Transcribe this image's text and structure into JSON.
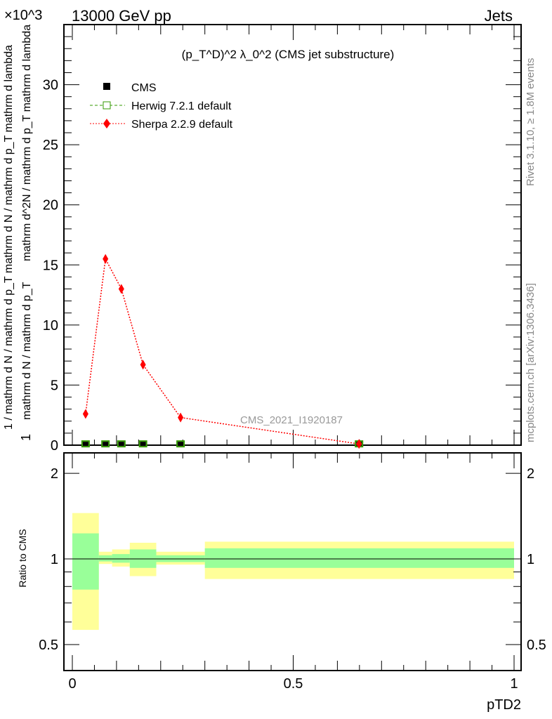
{
  "chart_data": {
    "type": "line",
    "title": "(p_T^D)^2 λ_0^2 (CMS jet substructure)",
    "header_left": "13000 GeV pp",
    "header_right": "Jets",
    "y_multiplier": "×10^3",
    "xlabel": "pTD2",
    "ylabel": "1 / mathrm d N / mathrm d p_T mathrm d N / mathrm d p_T mathrm d lambda",
    "ylabel_top": "1",
    "ylabel_bottom": "mathrm d N / mathrm d p_T",
    "ylabel_frac": "mathrm d^2N / mathrm d p_T mathrm d lambda",
    "ratio_ylabel": "Ratio to CMS",
    "side_text_1": "Rivet 3.1.10, ≥ 1.8M events",
    "side_text_2": "mcplots.cern.ch [arXiv:1306.3436]",
    "watermark": "CMS_2021_I1920187",
    "xlim": [
      0,
      1
    ],
    "ylim": [
      0,
      35
    ],
    "ratio_ylim": [
      0.405,
      2.36
    ],
    "ratio_log": true,
    "x_ticks": [
      "0",
      "0.5",
      "1"
    ],
    "y_ticks": [
      "0",
      "5",
      "10",
      "15",
      "20",
      "25",
      "30"
    ],
    "ratio_ticks": [
      "0.5",
      "1",
      "2"
    ],
    "legend": [
      "CMS",
      "Herwig 7.2.1 default",
      "Sherpa 2.2.9 default"
    ],
    "x": [
      0.03,
      0.075,
      0.111,
      0.16,
      0.245,
      0.649
    ],
    "series": [
      {
        "name": "CMS",
        "color": "#000000",
        "values": [
          0.05,
          0.05,
          0.05,
          0.05,
          0.05,
          0.05
        ]
      },
      {
        "name": "Herwig 7.2.1 default",
        "color": "#339900",
        "values": [
          0.05,
          0.05,
          0.05,
          0.05,
          0.05,
          0.05
        ]
      },
      {
        "name": "Sherpa 2.2.9 default",
        "color": "#ff0000",
        "values": [
          2.6,
          15.5,
          13.0,
          6.7,
          2.3,
          0.1
        ]
      }
    ],
    "ratio_bands": {
      "edges": [
        0,
        0.06,
        0.09,
        0.13,
        0.19,
        0.3,
        1.0
      ],
      "stat": [
        [
          0.78,
          1.23
        ],
        [
          0.98,
          1.03
        ],
        [
          0.97,
          1.04
        ],
        [
          0.93,
          1.08
        ],
        [
          0.975,
          1.03
        ],
        [
          0.93,
          1.09
        ]
      ],
      "total": [
        [
          0.563,
          1.45
        ],
        [
          0.96,
          1.06
        ],
        [
          0.94,
          1.08
        ],
        [
          0.87,
          1.14
        ],
        [
          0.955,
          1.06
        ],
        [
          0.85,
          1.15
        ]
      ],
      "stat_color": "#99ff99",
      "total_color": "#ffff99"
    }
  }
}
